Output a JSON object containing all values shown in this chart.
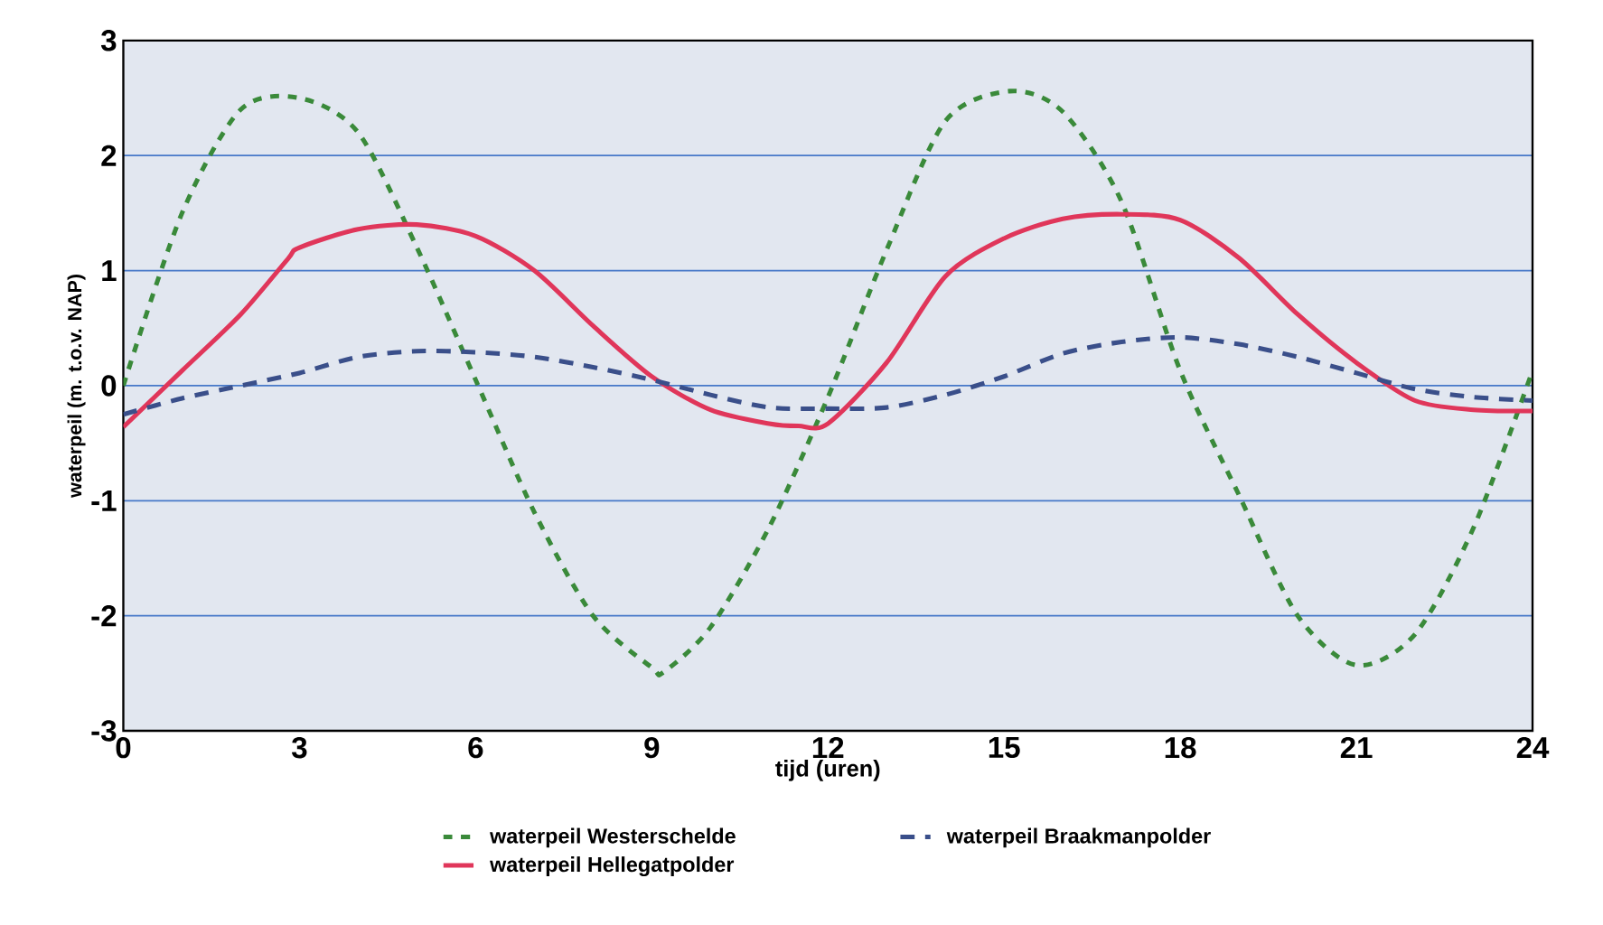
{
  "chart_data": {
    "type": "line",
    "xlabel": "tijd (uren)",
    "ylabel": "waterpeil (m. t.o.v. NAP)",
    "xlim": [
      0,
      24
    ],
    "ylim": [
      -3,
      3
    ],
    "xticks": [
      0,
      3,
      6,
      9,
      12,
      15,
      18,
      21,
      24
    ],
    "yticks": [
      -3,
      -2,
      -1,
      0,
      1,
      2,
      3
    ],
    "grid": "y",
    "legend": "bottom",
    "marker": "none",
    "series": [
      {
        "name": "waterpeil Westerschelde",
        "color": "#3a8a3a",
        "line_style": "dashed",
        "x": [
          0,
          1,
          2,
          3,
          4,
          5,
          6,
          7,
          8,
          9,
          9.2,
          10,
          11,
          12,
          13,
          14,
          15.1,
          16,
          17,
          18,
          19,
          20,
          21,
          22,
          23,
          24
        ],
        "values": [
          0,
          1.5,
          2.4,
          2.5,
          2.2,
          1.2,
          0.05,
          -1.1,
          -2.0,
          -2.45,
          -2.49,
          -2.1,
          -1.23,
          -0.1,
          1.18,
          2.3,
          2.56,
          2.38,
          1.6,
          0.13,
          -0.95,
          -2.0,
          -2.43,
          -2.16,
          -1.23,
          0.13
        ]
      },
      {
        "name": "waterpeil Hellegatpolder",
        "color": "#e0365a",
        "line_style": "solid",
        "x": [
          0,
          1,
          2,
          2.8,
          3,
          4,
          5,
          6,
          7,
          8,
          9,
          10,
          11,
          11.5,
          12,
          13,
          14,
          15,
          16,
          17,
          18,
          19,
          20,
          21,
          22,
          23,
          24
        ],
        "values": [
          -0.36,
          0.13,
          0.62,
          1.1,
          1.2,
          1.36,
          1.4,
          1.3,
          1.0,
          0.52,
          0.08,
          -0.21,
          -0.33,
          -0.35,
          -0.33,
          0.2,
          0.95,
          1.28,
          1.45,
          1.49,
          1.44,
          1.11,
          0.62,
          0.2,
          -0.13,
          -0.21,
          -0.22
        ]
      },
      {
        "name": "waterpeil Braakmanpolder",
        "color": "#3a4f8a",
        "line_style": "dashed",
        "x": [
          0,
          1,
          2,
          3,
          4,
          5,
          6,
          7,
          8,
          9,
          10,
          11,
          12,
          13,
          14,
          15,
          16,
          17,
          18,
          19,
          20,
          21,
          22,
          23,
          24
        ],
        "values": [
          -0.25,
          -0.11,
          0,
          0.11,
          0.25,
          0.3,
          0.29,
          0.25,
          0.16,
          0.05,
          -0.08,
          -0.19,
          -0.2,
          -0.19,
          -0.08,
          0.08,
          0.28,
          0.38,
          0.42,
          0.36,
          0.25,
          0.11,
          -0.03,
          -0.1,
          -0.13
        ]
      }
    ]
  }
}
